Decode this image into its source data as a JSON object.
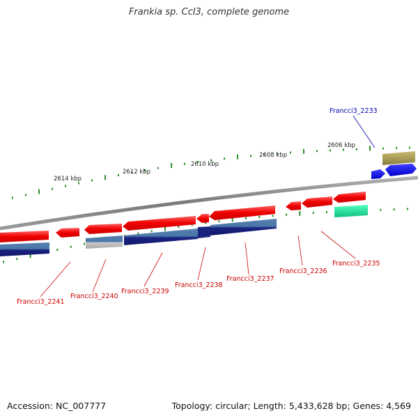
{
  "title": "Frankia sp. CcI3, complete genome",
  "accession_text": "Accession: NC_007777",
  "summary_text": "Topology: circular; Length: 5,433,628 bp; Genes: 4,569",
  "colors": {
    "backbone": "#8a8a8a",
    "tick": "#2e8b2e",
    "forward_gene": "#ee0000",
    "forward_gene_light": "#ff5a5a",
    "reverse_gene": "#1a237e",
    "reverse_gene_light": "#4f7fb0",
    "grey_feature": "#b0b0b0",
    "label_red": "#cc0000",
    "label_blue": "#0000aa",
    "olive_feature": "#a89a50",
    "blue_feature": "#0000ee",
    "teal_feature": "#20e0a0"
  },
  "scale_labels": [
    "2614 kbp",
    "2612 kbp",
    "2610 kbp",
    "2608 kbp",
    "2606 kbp"
  ],
  "gene_labels": [
    {
      "id": "2241",
      "text": "Francci3_2241",
      "color": "red"
    },
    {
      "id": "2240",
      "text": "Francci3_2240",
      "color": "red"
    },
    {
      "id": "2239",
      "text": "Francci3_2239",
      "color": "red"
    },
    {
      "id": "2238",
      "text": "Francci3_2238",
      "color": "red"
    },
    {
      "id": "2237",
      "text": "Francci3_2237",
      "color": "red"
    },
    {
      "id": "2236",
      "text": "Francci3_2236",
      "color": "red"
    },
    {
      "id": "2235",
      "text": "Francci3_2235",
      "color": "red"
    },
    {
      "id": "2233",
      "text": "Francci3_2233",
      "color": "blue"
    }
  ]
}
